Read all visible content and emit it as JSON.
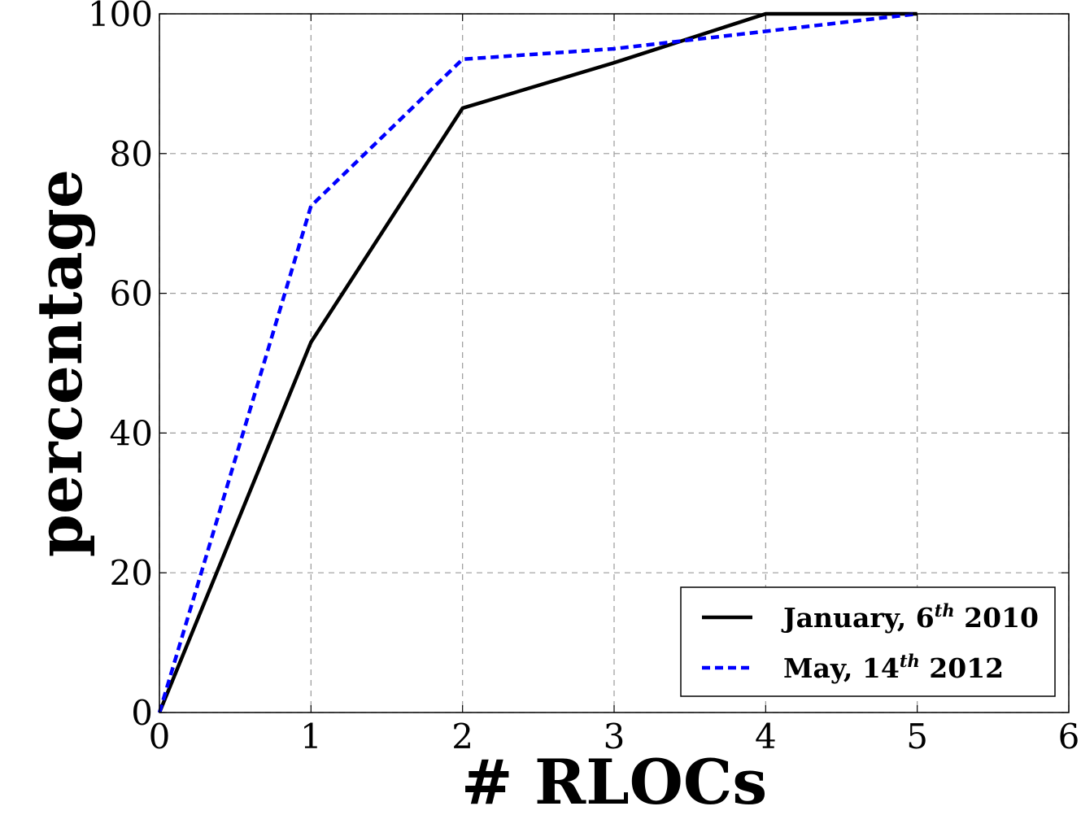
{
  "chart_data": {
    "type": "line",
    "title": "",
    "xlabel": "# RLOCs",
    "ylabel": "percentage",
    "xlim": [
      0,
      6
    ],
    "ylim": [
      0,
      100
    ],
    "xticks": [
      "0",
      "1",
      "2",
      "3",
      "4",
      "5",
      "6"
    ],
    "yticks": [
      "0",
      "20",
      "40",
      "60",
      "80",
      "100"
    ],
    "grid": true,
    "legend_position": "lower-right",
    "series": [
      {
        "name_prefix": "January, 6",
        "name_sup": "th",
        "name_suffix": " 2010",
        "color": "#000000",
        "style": "solid",
        "x": [
          0,
          1,
          2,
          3,
          4,
          5
        ],
        "y": [
          0,
          53,
          86.5,
          93,
          100,
          100
        ]
      },
      {
        "name_prefix": "May, 14",
        "name_sup": "th",
        "name_suffix": " 2012",
        "color": "#0000ff",
        "style": "dashed",
        "x": [
          0,
          1,
          2,
          3,
          4,
          5
        ],
        "y": [
          0,
          72.5,
          93.5,
          95,
          97.5,
          100
        ]
      }
    ]
  }
}
